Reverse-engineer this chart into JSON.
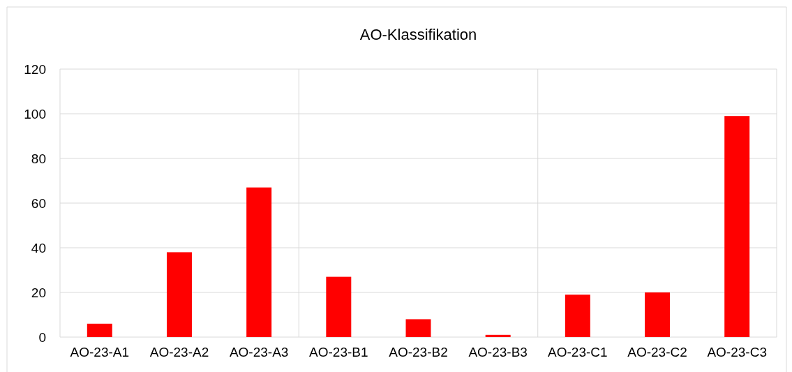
{
  "chart_data": {
    "type": "bar",
    "title": "AO-Klassifikation",
    "categories": [
      "AO-23-A1",
      "AO-23-A2",
      "AO-23-A3",
      "AO-23-B1",
      "AO-23-B2",
      "AO-23-B3",
      "AO-23-C1",
      "AO-23-C2",
      "AO-23-C3"
    ],
    "values": [
      6,
      38,
      67,
      27,
      8,
      1,
      19,
      20,
      99
    ],
    "color": "#ff0000",
    "ylim": [
      0,
      120
    ],
    "yticks": [
      0,
      20,
      40,
      60,
      80,
      100,
      120
    ],
    "grid": "y"
  }
}
